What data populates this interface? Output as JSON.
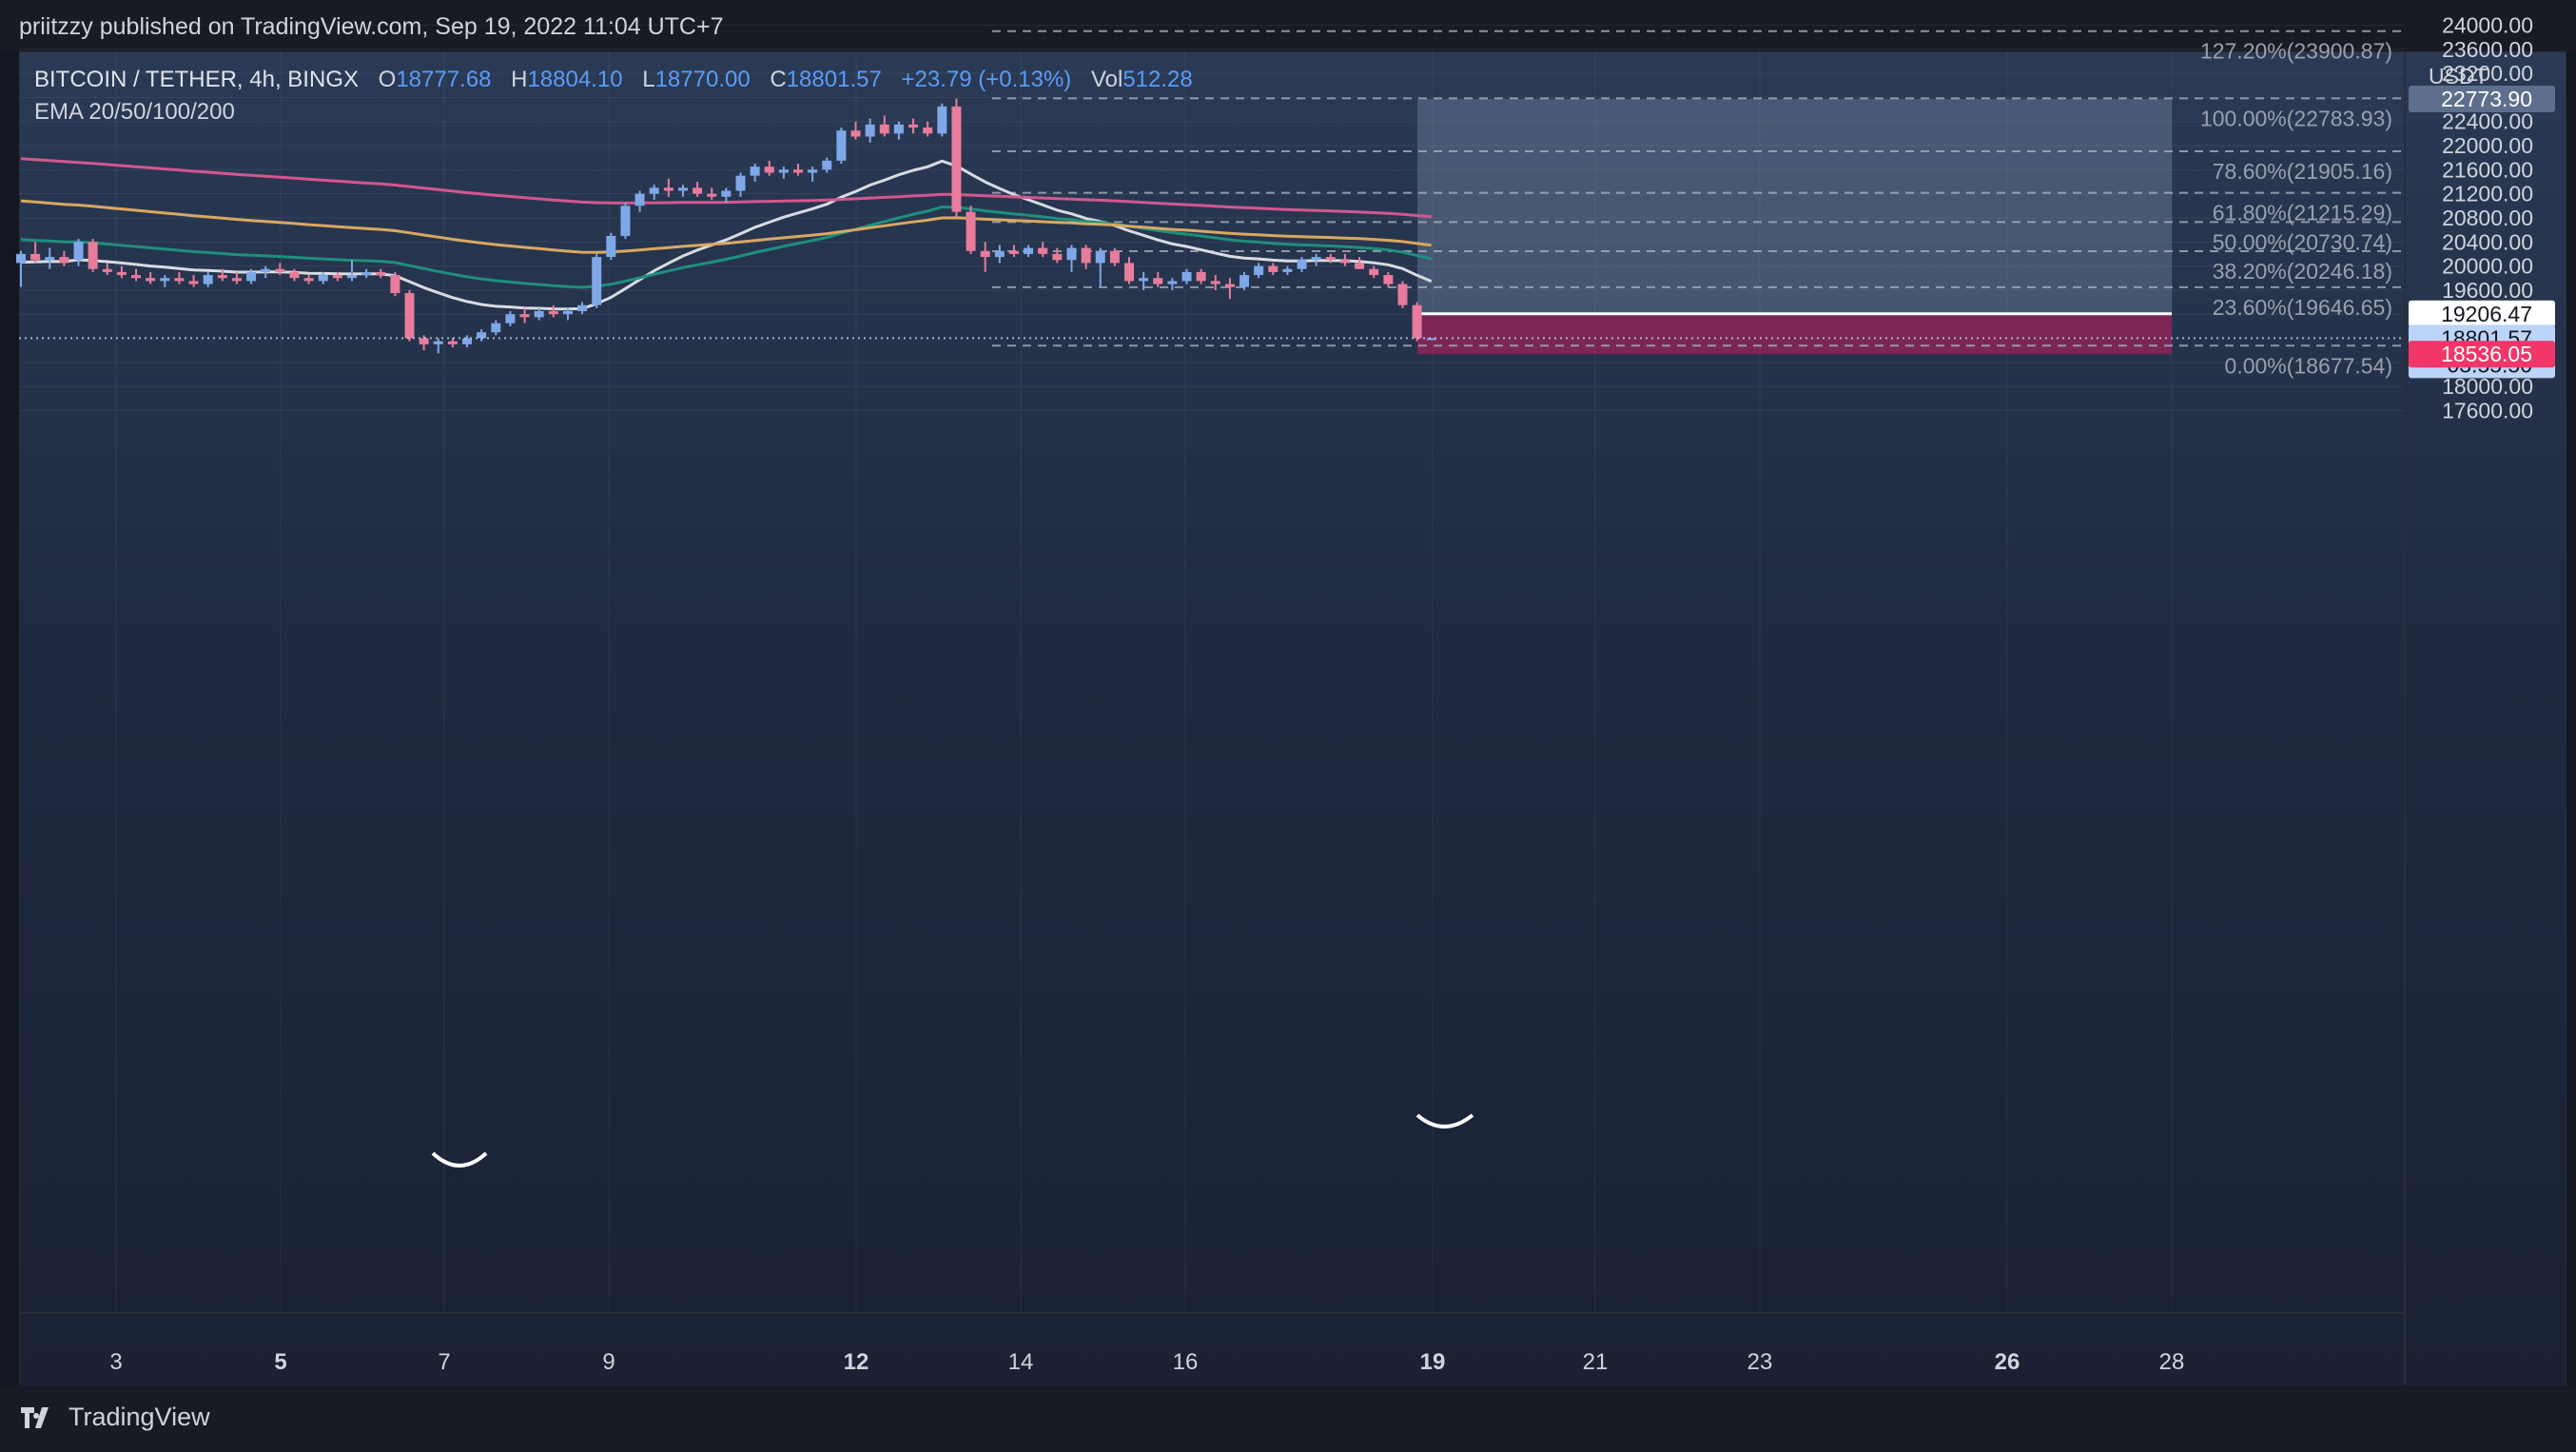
{
  "header": {
    "published": "priitzzy published on TradingView.com, Sep 19, 2022 11:04 UTC+7"
  },
  "legend": {
    "symbol": "BITCOIN / TETHER, 4h, BINGX",
    "o_label": "O",
    "o": "18777.68",
    "h_label": "H",
    "h": "18804.10",
    "l_label": "L",
    "l": "18770.00",
    "c_label": "C",
    "c": "18801.57",
    "change": "+23.79 (+0.13%)",
    "vol_label": "Vol",
    "vol": "512.28",
    "ema": "EMA 20/50/100/200"
  },
  "footer": {
    "brand": "TradingView"
  },
  "chart_data": {
    "type": "candlestick",
    "currency_label": "USDT",
    "y_ticks": [
      24000,
      23600,
      23200,
      22400,
      22000,
      21600,
      21200,
      20800,
      20400,
      20000,
      19600,
      18000,
      17600
    ],
    "x_ticks": [
      {
        "label": "3",
        "bold": false
      },
      {
        "label": "5",
        "bold": true
      },
      {
        "label": "7",
        "bold": false
      },
      {
        "label": "9",
        "bold": false
      },
      {
        "label": "12",
        "bold": true
      },
      {
        "label": "14",
        "bold": false
      },
      {
        "label": "16",
        "bold": false
      },
      {
        "label": "19",
        "bold": true
      },
      {
        "label": "21",
        "bold": false
      },
      {
        "label": "23",
        "bold": false
      },
      {
        "label": "26",
        "bold": true
      },
      {
        "label": "28",
        "bold": false
      }
    ],
    "fib_levels": [
      {
        "label": "127.20%(23900.87)",
        "price": 23900.87
      },
      {
        "label": "100.00%(22783.93)",
        "price": 22783.93
      },
      {
        "label": "78.60%(21905.16)",
        "price": 21905.16
      },
      {
        "label": "61.80%(21215.29)",
        "price": 21215.29
      },
      {
        "label": "50.00%(20730.74)",
        "price": 20730.74
      },
      {
        "label": "38.20%(20246.18)",
        "price": 20246.18
      },
      {
        "label": "23.60%(19646.65)",
        "price": 19646.65
      },
      {
        "label": "0.00%(18677.54)",
        "price": 18677.54
      }
    ],
    "price_tags": [
      {
        "value": "22773.90",
        "price": 22773.9,
        "bg": "#5d6f8c",
        "fg": "#ffffff"
      },
      {
        "value": "19206.47",
        "price": 19206.47,
        "bg": "#ffffff",
        "fg": "#131722"
      },
      {
        "value": "18801.57",
        "price": 18801.57,
        "bg": "#bcd4f7",
        "fg": "#131722"
      },
      {
        "value": "03:55:50",
        "bg": "#bcd4f7",
        "fg": "#131722"
      },
      {
        "value": "18536.05",
        "price": 18536.05,
        "bg": "#f23667",
        "fg": "#ffffff"
      }
    ],
    "position": {
      "entry": 19206.47,
      "target": 22773.9,
      "stop": 18536.05
    },
    "ema_series": [
      {
        "name": "EMA 20",
        "color": "#d8dbe2"
      },
      {
        "name": "EMA 50",
        "color": "#1f8f7d"
      },
      {
        "name": "EMA 100",
        "color": "#d9a862"
      },
      {
        "name": "EMA 200",
        "color": "#d4578f"
      }
    ],
    "colors": {
      "up": "#7fa8e8",
      "down": "#e77c9c"
    },
    "candles": [
      [
        20050,
        20250,
        19650,
        20200
      ],
      [
        20200,
        20400,
        20050,
        20100
      ],
      [
        20100,
        20300,
        19950,
        20150
      ],
      [
        20150,
        20250,
        20000,
        20050
      ],
      [
        20100,
        20450,
        20000,
        20400
      ],
      [
        20400,
        20450,
        19900,
        19950
      ],
      [
        19950,
        20050,
        19850,
        19900
      ],
      [
        19900,
        20000,
        19800,
        19850
      ],
      [
        19850,
        19950,
        19750,
        19800
      ],
      [
        19800,
        19900,
        19700,
        19750
      ],
      [
        19750,
        19850,
        19650,
        19800
      ],
      [
        19800,
        19900,
        19700,
        19750
      ],
      [
        19750,
        19850,
        19650,
        19700
      ],
      [
        19700,
        19900,
        19650,
        19850
      ],
      [
        19850,
        19950,
        19750,
        19800
      ],
      [
        19800,
        19900,
        19700,
        19750
      ],
      [
        19750,
        19950,
        19700,
        19900
      ],
      [
        19900,
        20000,
        19800,
        19950
      ],
      [
        19950,
        20050,
        19850,
        19900
      ],
      [
        19900,
        19950,
        19750,
        19800
      ],
      [
        19800,
        19850,
        19700,
        19750
      ],
      [
        19750,
        19900,
        19700,
        19850
      ],
      [
        19850,
        19900,
        19750,
        19800
      ],
      [
        19800,
        20100,
        19750,
        19850
      ],
      [
        19850,
        19950,
        19800,
        19900
      ],
      [
        19900,
        19950,
        19800,
        19850
      ],
      [
        19850,
        19900,
        19500,
        19550
      ],
      [
        19550,
        19600,
        18750,
        18800
      ],
      [
        18800,
        18850,
        18600,
        18700
      ],
      [
        18700,
        18800,
        18550,
        18750
      ],
      [
        18750,
        18800,
        18650,
        18700
      ],
      [
        18700,
        18850,
        18650,
        18800
      ],
      [
        18800,
        18950,
        18750,
        18900
      ],
      [
        18900,
        19100,
        18850,
        19050
      ],
      [
        19050,
        19250,
        19000,
        19200
      ],
      [
        19200,
        19300,
        19050,
        19150
      ],
      [
        19150,
        19300,
        19100,
        19250
      ],
      [
        19250,
        19350,
        19150,
        19200
      ],
      [
        19200,
        19300,
        19100,
        19250
      ],
      [
        19250,
        19400,
        19200,
        19350
      ],
      [
        19350,
        20200,
        19300,
        20150
      ],
      [
        20150,
        20550,
        20100,
        20500
      ],
      [
        20500,
        21050,
        20450,
        21000
      ],
      [
        21000,
        21250,
        20900,
        21200
      ],
      [
        21200,
        21350,
        21100,
        21300
      ],
      [
        21300,
        21450,
        21150,
        21250
      ],
      [
        21250,
        21350,
        21150,
        21300
      ],
      [
        21300,
        21400,
        21150,
        21200
      ],
      [
        21200,
        21300,
        21100,
        21150
      ],
      [
        21150,
        21300,
        21050,
        21250
      ],
      [
        21250,
        21550,
        21150,
        21500
      ],
      [
        21500,
        21700,
        21400,
        21650
      ],
      [
        21650,
        21750,
        21500,
        21550
      ],
      [
        21550,
        21650,
        21450,
        21600
      ],
      [
        21600,
        21700,
        21500,
        21550
      ],
      [
        21550,
        21650,
        21400,
        21600
      ],
      [
        21600,
        21800,
        21550,
        21750
      ],
      [
        21750,
        22300,
        21700,
        22250
      ],
      [
        22250,
        22400,
        22100,
        22150
      ],
      [
        22150,
        22450,
        22050,
        22350
      ],
      [
        22350,
        22500,
        22150,
        22200
      ],
      [
        22200,
        22400,
        22100,
        22350
      ],
      [
        22350,
        22450,
        22200,
        22300
      ],
      [
        22300,
        22400,
        22150,
        22200
      ],
      [
        22200,
        22700,
        22150,
        22650
      ],
      [
        22650,
        22780,
        20800,
        20900
      ],
      [
        20900,
        21000,
        20200,
        20250
      ],
      [
        20250,
        20400,
        19900,
        20150
      ],
      [
        20150,
        20350,
        20050,
        20250
      ],
      [
        20250,
        20350,
        20150,
        20200
      ],
      [
        20200,
        20350,
        20150,
        20300
      ],
      [
        20300,
        20400,
        20150,
        20200
      ],
      [
        20200,
        20300,
        20050,
        20100
      ],
      [
        20100,
        20350,
        19900,
        20300
      ],
      [
        20300,
        20350,
        19950,
        20050
      ],
      [
        20050,
        20300,
        19650,
        20250
      ],
      [
        20250,
        20300,
        20000,
        20050
      ],
      [
        20050,
        20150,
        19700,
        19750
      ],
      [
        19750,
        19900,
        19600,
        19800
      ],
      [
        19800,
        19900,
        19650,
        19700
      ],
      [
        19700,
        19800,
        19600,
        19750
      ],
      [
        19750,
        19950,
        19700,
        19900
      ],
      [
        19900,
        19950,
        19700,
        19750
      ],
      [
        19750,
        19850,
        19600,
        19700
      ],
      [
        19700,
        19800,
        19450,
        19650
      ],
      [
        19650,
        19900,
        19600,
        19850
      ],
      [
        19850,
        20050,
        19800,
        20000
      ],
      [
        20000,
        20050,
        19850,
        19900
      ],
      [
        19900,
        20000,
        19850,
        19950
      ],
      [
        19950,
        20150,
        19900,
        20100
      ],
      [
        20100,
        20200,
        20000,
        20150
      ],
      [
        20150,
        20200,
        20050,
        20100
      ],
      [
        20100,
        20200,
        20000,
        20050
      ],
      [
        20050,
        20150,
        19950,
        19950
      ],
      [
        19950,
        20000,
        19800,
        19850
      ],
      [
        19850,
        19900,
        19650,
        19700
      ],
      [
        19700,
        19750,
        19300,
        19350
      ],
      [
        19350,
        19400,
        18750,
        18800
      ],
      [
        18777.68,
        18804.1,
        18770.0,
        18801.57
      ]
    ]
  }
}
